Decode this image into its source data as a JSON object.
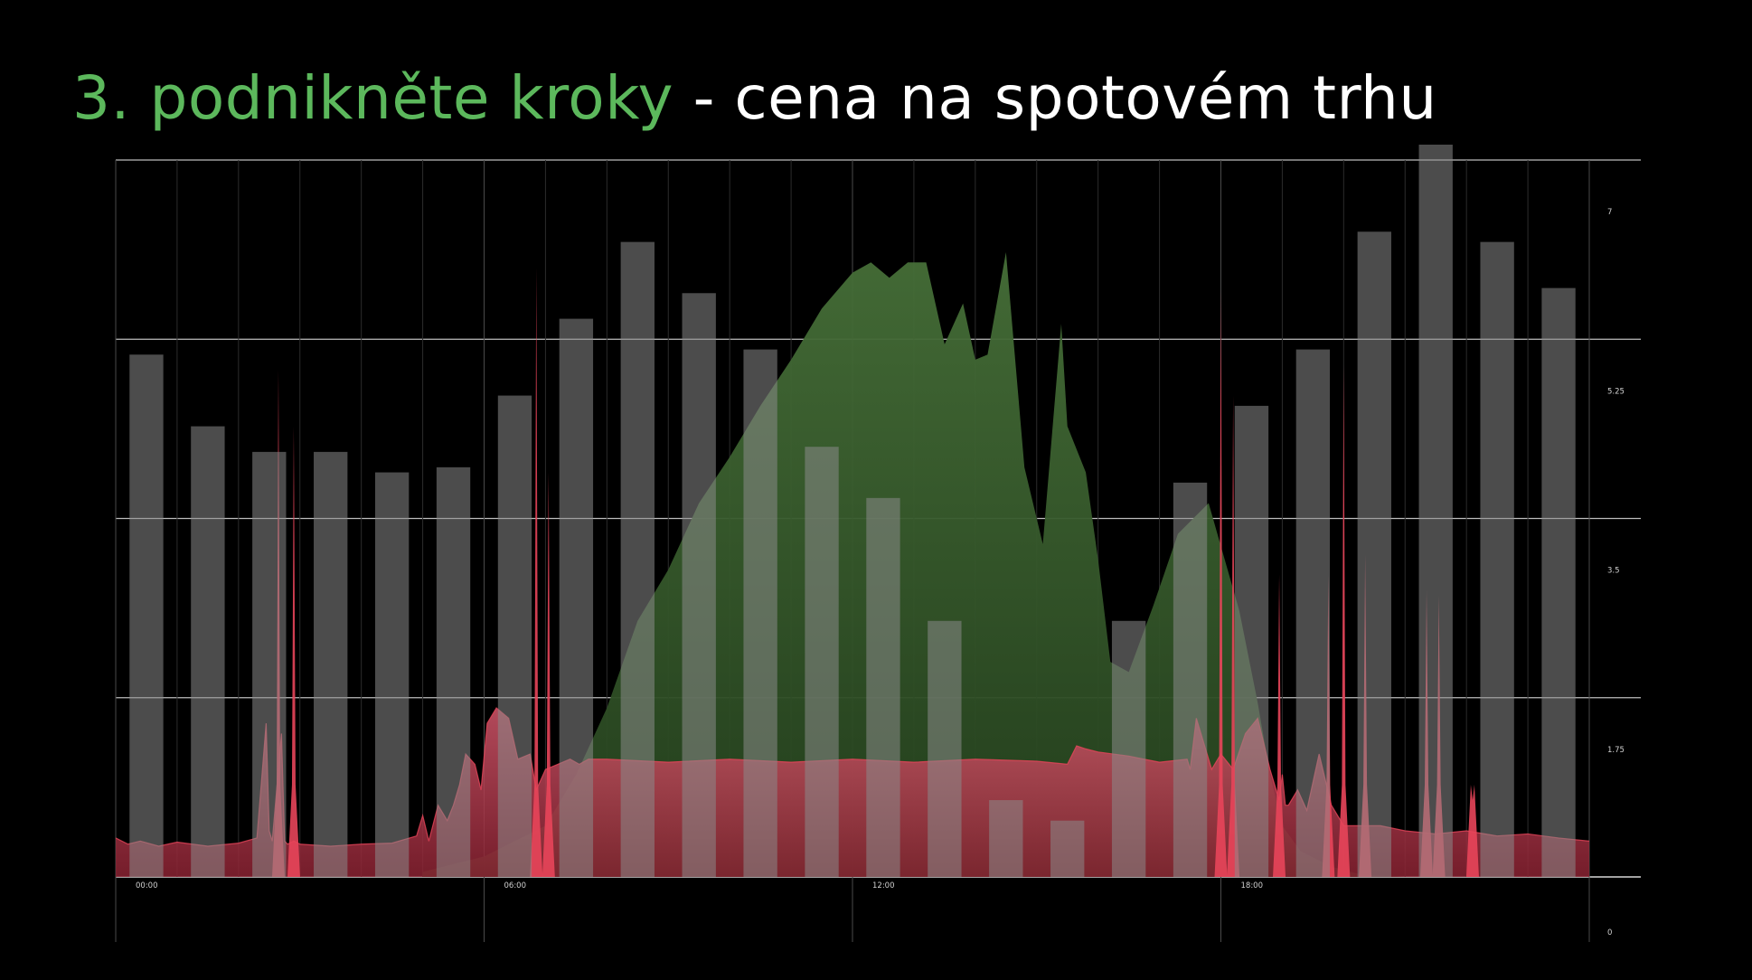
{
  "title": {
    "accent": "3. podnikněte kroky",
    "rest": " - cena na spotovém trhu"
  },
  "colors": {
    "background": "#000000",
    "accent": "#5cb85c",
    "bars": "#5a5a5a",
    "solar": "#3f6b33",
    "consumption": "#c44a5a",
    "spikes": "#e8455a",
    "grid": "#bdbdbd"
  },
  "chart_data": {
    "type": "bar",
    "x_ticks": [
      "00:00",
      "06:00",
      "12:00",
      "18:00"
    ],
    "y_ticks": [
      "7",
      "5.25",
      "3.5",
      "1.75",
      "0"
    ],
    "ylim": [
      0,
      7
    ],
    "grid": true,
    "hours": [
      0,
      1,
      2,
      3,
      4,
      5,
      6,
      7,
      8,
      9,
      10,
      11,
      12,
      13,
      14,
      15,
      16,
      17,
      18,
      19,
      20,
      21,
      22,
      23
    ],
    "price": [
      5.1,
      4.4,
      4.15,
      4.15,
      3.95,
      4.0,
      4.7,
      5.45,
      6.2,
      5.7,
      5.15,
      4.2,
      3.7,
      2.5,
      0.75,
      0.55,
      2.5,
      3.85,
      4.6,
      5.15,
      6.3,
      7.15,
      6.2,
      5.75
    ],
    "consumption": {
      "x": [
        0,
        0.2,
        0.4,
        0.7,
        1.0,
        1.5,
        2.0,
        2.3,
        2.45,
        2.5,
        2.55,
        2.7,
        2.75,
        2.8,
        2.9,
        3.0,
        3.5,
        4.0,
        4.5,
        4.9,
        5.0,
        5.1,
        5.25,
        5.4,
        5.5,
        5.6,
        5.7,
        5.85,
        5.95,
        6.05,
        6.2,
        6.4,
        6.55,
        6.75,
        6.85,
        7.0,
        7.2,
        7.4,
        7.55,
        7.7,
        8.0,
        9.0,
        10.0,
        11.0,
        12.0,
        13.0,
        14.0,
        15.0,
        15.5,
        15.65,
        15.8,
        16.0,
        16.5,
        17.0,
        17.45,
        17.5,
        17.6,
        17.7,
        17.85,
        18.0,
        18.2,
        18.4,
        18.6,
        18.8,
        18.95,
        19.0,
        19.05,
        19.1,
        19.25,
        19.4,
        19.6,
        19.8,
        20.0,
        20.3,
        20.6,
        21.0,
        21.5,
        22.0,
        22.5,
        23.0,
        23.5,
        24.0
      ],
      "y": [
        0.38,
        0.32,
        0.35,
        0.3,
        0.34,
        0.3,
        0.33,
        0.38,
        1.5,
        0.45,
        0.35,
        1.4,
        0.35,
        0.32,
        0.35,
        0.32,
        0.3,
        0.32,
        0.33,
        0.4,
        0.6,
        0.35,
        0.7,
        0.55,
        0.7,
        0.9,
        1.2,
        1.1,
        0.85,
        1.5,
        1.65,
        1.55,
        1.15,
        1.2,
        0.85,
        1.05,
        1.1,
        1.15,
        1.1,
        1.15,
        1.15,
        1.12,
        1.15,
        1.12,
        1.15,
        1.12,
        1.15,
        1.13,
        1.1,
        1.28,
        1.25,
        1.22,
        1.18,
        1.12,
        1.15,
        1.05,
        1.55,
        1.35,
        1.05,
        1.2,
        1.05,
        1.4,
        1.55,
        1.05,
        0.75,
        1.0,
        0.7,
        0.7,
        0.85,
        0.65,
        1.2,
        0.7,
        0.5,
        0.5,
        0.5,
        0.45,
        0.42,
        0.45,
        0.4,
        0.42,
        0.38,
        0.35
      ]
    },
    "spikes": [
      {
        "hour": 2.65,
        "value": 4.95
      },
      {
        "hour": 2.9,
        "value": 4.4
      },
      {
        "hour": 6.85,
        "value": 5.95
      },
      {
        "hour": 7.05,
        "value": 3.95
      },
      {
        "hour": 18.0,
        "value": 5.75
      },
      {
        "hour": 18.2,
        "value": 4.7
      },
      {
        "hour": 18.95,
        "value": 2.95
      },
      {
        "hour": 19.75,
        "value": 2.95
      },
      {
        "hour": 20.0,
        "value": 5.0
      },
      {
        "hour": 20.35,
        "value": 3.15
      },
      {
        "hour": 21.35,
        "value": 2.8
      },
      {
        "hour": 21.55,
        "value": 2.75
      },
      {
        "hour": 22.1,
        "value": 0.75
      }
    ],
    "solar": {
      "x": [
        5.0,
        6.0,
        7.0,
        7.5,
        8.0,
        8.5,
        9.0,
        9.5,
        10.0,
        10.5,
        11.0,
        11.5,
        12.0,
        12.3,
        12.6,
        12.9,
        13.2,
        13.5,
        13.8,
        14.0,
        14.2,
        14.5,
        14.8,
        15.1,
        15.4,
        15.5,
        15.8,
        16.0,
        16.2,
        16.5,
        16.9,
        17.3,
        17.8,
        18.3,
        18.6,
        18.8,
        19.0,
        19.3,
        19.8,
        20.3,
        21.0
      ],
      "y": [
        0.05,
        0.2,
        0.5,
        1.0,
        1.65,
        2.5,
        3.0,
        3.65,
        4.1,
        4.6,
        5.05,
        5.55,
        5.9,
        6.0,
        5.85,
        6.0,
        6.0,
        5.2,
        5.6,
        5.05,
        5.1,
        6.1,
        4.0,
        3.25,
        5.4,
        4.4,
        3.95,
        3.1,
        2.1,
        2.0,
        2.65,
        3.35,
        3.65,
        2.6,
        1.7,
        1.0,
        0.5,
        0.25,
        0.1,
        0.02,
        0.0
      ]
    }
  }
}
